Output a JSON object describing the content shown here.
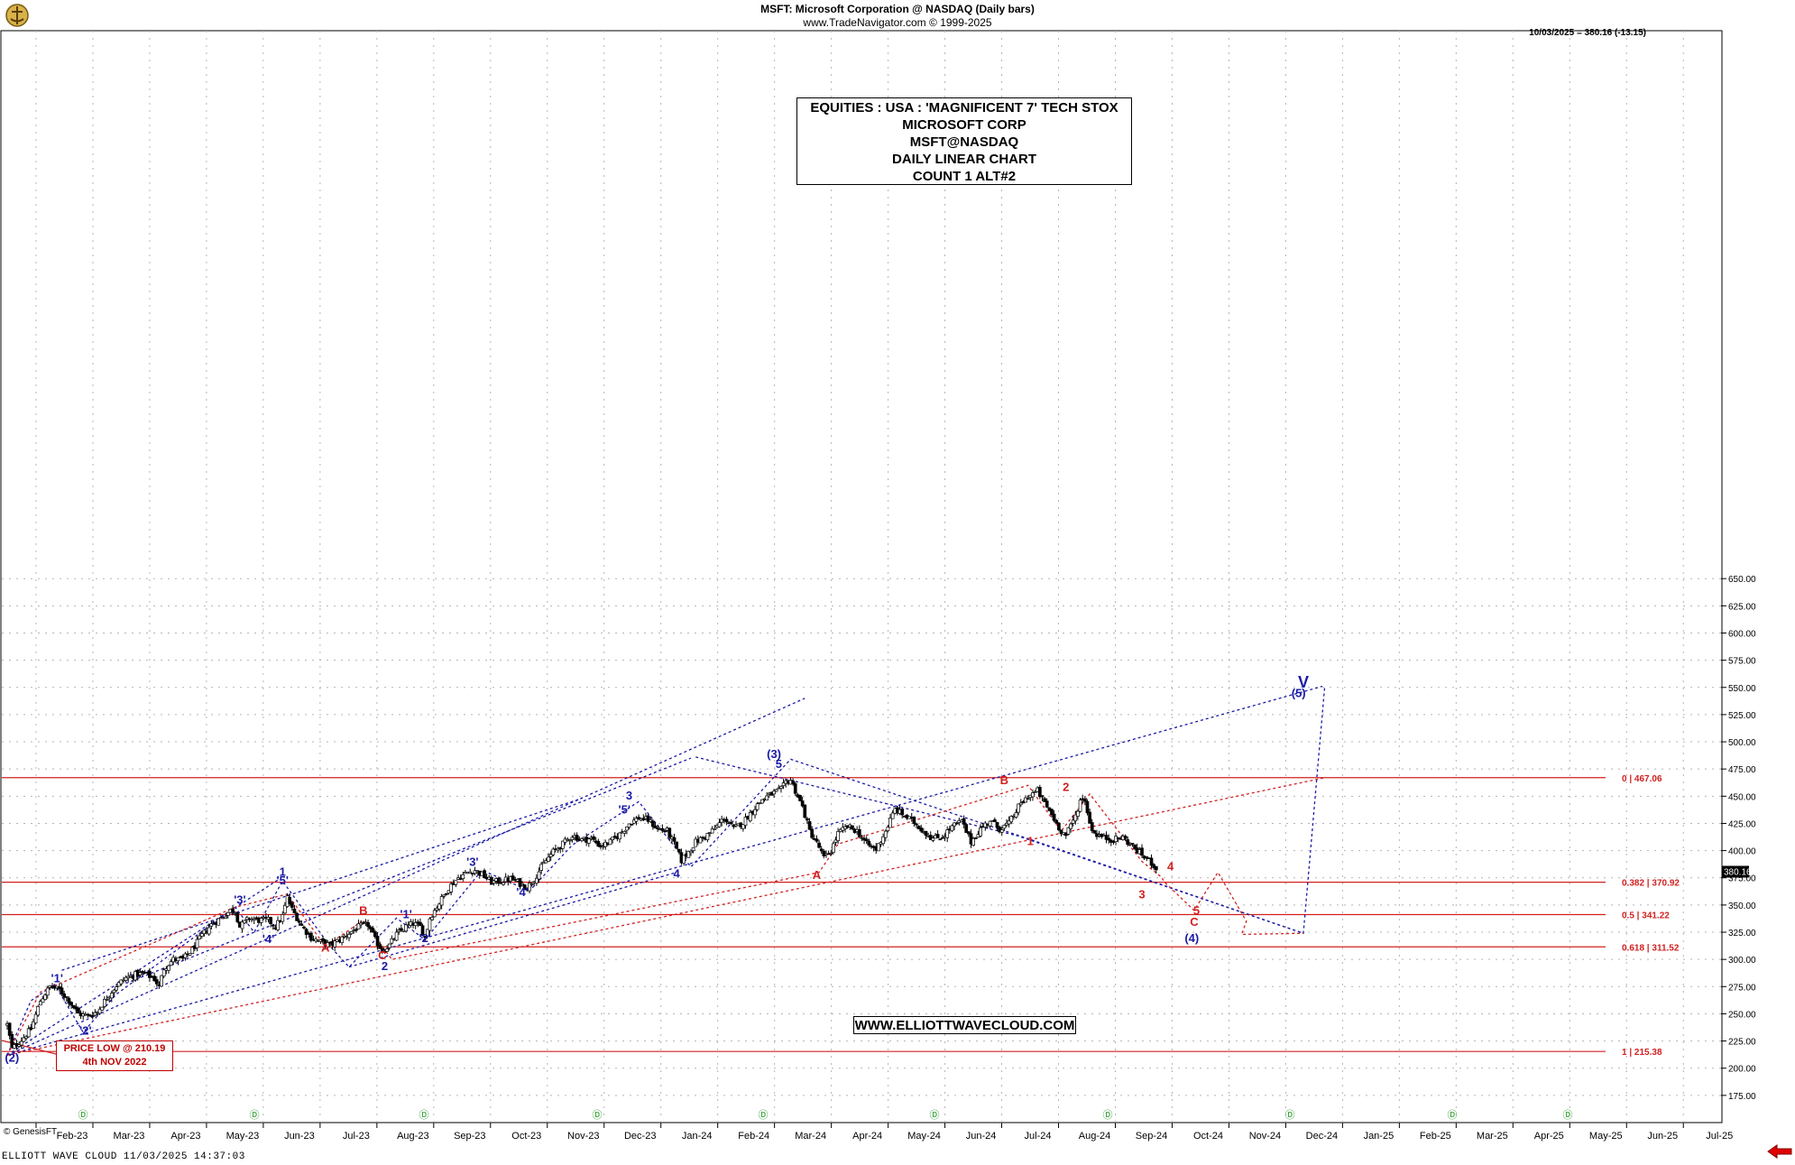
{
  "header": {
    "title": "MSFT:  Microsoft Corporation @ NASDAQ  (Daily bars)",
    "copyright": "www.TradeNavigator.com © 1999-2025",
    "last_quote": "10/03/2025 = 380.16 (-13.15)"
  },
  "title_box": [
    "EQUITIES : USA : 'MAGNIFICENT 7' TECH STOX",
    "MICROSOFT CORP",
    "MSFT@NASDAQ",
    "DAILY LINEAR CHART",
    "COUNT 1 ALT#2"
  ],
  "url_box": "WWW.ELLIOTTWAVECLOUD.COM",
  "low_box": [
    "PRICE LOW @ 210.19",
    "4th NOV 2022"
  ],
  "credit": "© GenesisFT",
  "footer": "ELLIOTT WAVE CLOUD   11/03/2025 14:37:03",
  "colors": {
    "price": "#000000",
    "blue": "#1a1aa6",
    "red": "#d22020",
    "grid": "#b4b4b4",
    "current": "#000000"
  },
  "chart_data": {
    "type": "candlestick",
    "ylim": [
      150,
      660
    ],
    "yticks": [
      "175.00",
      "200.00",
      "225.00",
      "250.00",
      "275.00",
      "300.00",
      "325.00",
      "350.00",
      "375.00",
      "400.00",
      "425.00",
      "450.00",
      "475.00",
      "500.00",
      "525.00",
      "550.00",
      "575.00",
      "600.00",
      "625.00",
      "650.00"
    ],
    "xticks": [
      "Feb-23",
      "Mar-23",
      "Apr-23",
      "May-23",
      "Jun-23",
      "Jul-23",
      "Aug-23",
      "Sep-23",
      "Oct-23",
      "Nov-23",
      "Dec-23",
      "Jan-24",
      "Feb-24",
      "Mar-24",
      "Apr-24",
      "May-24",
      "Jun-24",
      "Jul-24",
      "Aug-24",
      "Sep-24",
      "Oct-24",
      "Nov-24",
      "Dec-24",
      "Jan-25",
      "Feb-25",
      "Mar-25",
      "Apr-25",
      "May-25",
      "Jun-25",
      "Jul-25"
    ],
    "current_price": {
      "label": "380.16",
      "value": 380.16
    },
    "price_path": [
      [
        0,
        240
      ],
      [
        2,
        218
      ],
      [
        6,
        226
      ],
      [
        10,
        236
      ],
      [
        14,
        262
      ],
      [
        18,
        275
      ],
      [
        22,
        272
      ],
      [
        26,
        262
      ],
      [
        30,
        250
      ],
      [
        34,
        248
      ],
      [
        38,
        252
      ],
      [
        42,
        265
      ],
      [
        46,
        276
      ],
      [
        50,
        283
      ],
      [
        54,
        286
      ],
      [
        58,
        287
      ],
      [
        62,
        282
      ],
      [
        64,
        275
      ],
      [
        66,
        292
      ],
      [
        70,
        300
      ],
      [
        74,
        300
      ],
      [
        78,
        309
      ],
      [
        82,
        322
      ],
      [
        86,
        332
      ],
      [
        90,
        338
      ],
      [
        94,
        345
      ],
      [
        96,
        345
      ],
      [
        98,
        330
      ],
      [
        102,
        338
      ],
      [
        106,
        336
      ],
      [
        110,
        336
      ],
      [
        113,
        330
      ],
      [
        116,
        340
      ],
      [
        118,
        357
      ],
      [
        120,
        346
      ],
      [
        124,
        331
      ],
      [
        128,
        320
      ],
      [
        132,
        316
      ],
      [
        136,
        313
      ],
      [
        140,
        318
      ],
      [
        144,
        324
      ],
      [
        148,
        330
      ],
      [
        152,
        332
      ],
      [
        155,
        318
      ],
      [
        158,
        308
      ],
      [
        161,
        313
      ],
      [
        164,
        323
      ],
      [
        168,
        330
      ],
      [
        171,
        333
      ],
      [
        174,
        330
      ],
      [
        176,
        320
      ],
      [
        178,
        338
      ],
      [
        182,
        352
      ],
      [
        186,
        366
      ],
      [
        190,
        375
      ],
      [
        194,
        380
      ],
      [
        197,
        382
      ],
      [
        200,
        378
      ],
      [
        204,
        371
      ],
      [
        208,
        372
      ],
      [
        212,
        374
      ],
      [
        216,
        370
      ],
      [
        219,
        366
      ],
      [
        222,
        374
      ],
      [
        226,
        388
      ],
      [
        230,
        399
      ],
      [
        234,
        406
      ],
      [
        238,
        414
      ],
      [
        242,
        410
      ],
      [
        246,
        411
      ],
      [
        250,
        404
      ],
      [
        254,
        408
      ],
      [
        258,
        415
      ],
      [
        262,
        425
      ],
      [
        266,
        430
      ],
      [
        270,
        428
      ],
      [
        274,
        420
      ],
      [
        278,
        418
      ],
      [
        281,
        406
      ],
      [
        284,
        391
      ],
      [
        287,
        399
      ],
      [
        290,
        408
      ],
      [
        294,
        413
      ],
      [
        298,
        420
      ],
      [
        302,
        430
      ],
      [
        306,
        420
      ],
      [
        310,
        426
      ],
      [
        314,
        437
      ],
      [
        318,
        447
      ],
      [
        322,
        452
      ],
      [
        326,
        456
      ],
      [
        328,
        463
      ],
      [
        330,
        465
      ],
      [
        332,
        455
      ],
      [
        335,
        440
      ],
      [
        338,
        418
      ],
      [
        342,
        403
      ],
      [
        344,
        393
      ],
      [
        347,
        400
      ],
      [
        350,
        416
      ],
      [
        354,
        422
      ],
      [
        358,
        418
      ],
      [
        362,
        406
      ],
      [
        366,
        401
      ],
      [
        370,
        418
      ],
      [
        374,
        438
      ],
      [
        378,
        432
      ],
      [
        382,
        426
      ],
      [
        386,
        418
      ],
      [
        390,
        411
      ],
      [
        394,
        413
      ],
      [
        398,
        422
      ],
      [
        402,
        427
      ],
      [
        406,
        408
      ],
      [
        410,
        420
      ],
      [
        414,
        428
      ],
      [
        418,
        420
      ],
      [
        422,
        425
      ],
      [
        426,
        440
      ],
      [
        430,
        450
      ],
      [
        434,
        455
      ],
      [
        436,
        447
      ],
      [
        440,
        433
      ],
      [
        442,
        425
      ],
      [
        444,
        418
      ],
      [
        446,
        414
      ],
      [
        450,
        432
      ],
      [
        452,
        446
      ],
      [
        454,
        447
      ],
      [
        456,
        425
      ],
      [
        458,
        416
      ],
      [
        462,
        412
      ],
      [
        466,
        410
      ],
      [
        470,
        412
      ],
      [
        474,
        404
      ],
      [
        478,
        396
      ],
      [
        482,
        389
      ],
      [
        484,
        384
      ],
      [
        485,
        380.16
      ]
    ],
    "horizontal_levels": [
      {
        "value": 467.06,
        "label": "0 | 467.06"
      },
      {
        "value": 370.92,
        "label": "0.382 | 370.92"
      },
      {
        "value": 341.22,
        "label": "0.5 | 341.22"
      },
      {
        "value": 311.52,
        "label": "0.618 | 311.52"
      },
      {
        "value": 215.38,
        "label": "1 | 215.38"
      }
    ],
    "blue_channels": [
      {
        "path": [
          [
            0,
            212
          ],
          [
            336,
            540
          ]
        ]
      },
      {
        "path": [
          [
            0,
            212
          ],
          [
            554,
            551
          ]
        ]
      },
      {
        "path": [
          [
            0,
            212
          ],
          [
            114,
            373
          ]
        ]
      },
      {
        "path": [
          [
            23,
            290
          ],
          [
            242,
            448
          ]
        ]
      },
      {
        "path": [
          [
            144,
            293
          ],
          [
            282,
            380
          ]
        ]
      },
      {
        "path": [
          [
            290,
            486
          ],
          [
            425,
            414
          ]
        ]
      },
      {
        "path": [
          [
            425,
            414
          ],
          [
            546,
            324
          ]
        ]
      },
      {
        "path": [
          [
            50,
            278
          ],
          [
            288,
            485
          ]
        ]
      }
    ],
    "blue_zigzag": [
      [
        0,
        212
      ],
      [
        10,
        262
      ],
      [
        20,
        277
      ],
      [
        32,
        233
      ],
      [
        46,
        268
      ],
      [
        96,
        348
      ],
      [
        104,
        325
      ],
      [
        116,
        372
      ],
      [
        136,
        312
      ],
      [
        144,
        293
      ],
      [
        164,
        338
      ],
      [
        176,
        318
      ],
      [
        200,
        382
      ],
      [
        220,
        363
      ],
      [
        238,
        405
      ],
      [
        266,
        445
      ],
      [
        288,
        385
      ],
      [
        330,
        484
      ],
      [
        430,
        411
      ],
      [
        546,
        324
      ],
      [
        555,
        551
      ]
    ],
    "red_zigzag": [
      [
        0,
        212
      ],
      [
        14,
        270
      ],
      [
        96,
        348
      ],
      [
        118,
        360
      ],
      [
        134,
        312
      ],
      [
        150,
        336
      ],
      [
        162,
        300
      ],
      [
        342,
        380
      ],
      [
        350,
        406
      ],
      [
        430,
        460
      ],
      [
        444,
        418
      ],
      [
        456,
        452
      ],
      [
        478,
        390
      ],
      [
        486,
        376
      ],
      [
        488,
        370
      ],
      [
        500,
        345
      ],
      [
        510,
        380
      ],
      [
        522,
        335
      ],
      [
        520,
        323
      ],
      [
        546,
        324
      ]
    ],
    "red_trend": [
      [
        0,
        212
      ],
      [
        555,
        467
      ]
    ],
    "annotations": [
      {
        "text": "'1'",
        "color": "blue",
        "x": 21,
        "y": 279
      },
      {
        "text": "'2'",
        "color": "blue",
        "x": 33,
        "y": 231
      },
      {
        "text": "'3'",
        "color": "blue",
        "x": 98,
        "y": 351
      },
      {
        "text": "'4'",
        "color": "blue",
        "x": 110,
        "y": 315
      },
      {
        "text": "'5'",
        "color": "blue",
        "x": 116,
        "y": 369
      },
      {
        "text": "1",
        "color": "blue",
        "x": 116,
        "y": 377
      },
      {
        "text": "A",
        "color": "red",
        "x": 134,
        "y": 307
      },
      {
        "text": "B",
        "color": "red",
        "x": 150,
        "y": 341
      },
      {
        "text": "C",
        "color": "red",
        "x": 158,
        "y": 300
      },
      {
        "text": "2",
        "color": "blue",
        "x": 159,
        "y": 290
      },
      {
        "text": "'1'",
        "color": "blue",
        "x": 168,
        "y": 338
      },
      {
        "text": "'2'",
        "color": "blue",
        "x": 176,
        "y": 316
      },
      {
        "text": "'3'",
        "color": "blue",
        "x": 196,
        "y": 386
      },
      {
        "text": "'4'",
        "color": "blue",
        "x": 217,
        "y": 358
      },
      {
        "text": "'5'",
        "color": "blue",
        "x": 260,
        "y": 434
      },
      {
        "text": "3",
        "color": "blue",
        "x": 262,
        "y": 447
      },
      {
        "text": "4",
        "color": "blue",
        "x": 282,
        "y": 375
      },
      {
        "text": "5",
        "color": "blue",
        "x": 325,
        "y": 476
      },
      {
        "text": "(3)",
        "color": "blue",
        "x": 323,
        "y": 485
      },
      {
        "text": "A",
        "color": "red",
        "x": 341,
        "y": 374
      },
      {
        "text": "B",
        "color": "red",
        "x": 420,
        "y": 461
      },
      {
        "text": "1",
        "color": "red",
        "x": 431,
        "y": 405
      },
      {
        "text": "2",
        "color": "red",
        "x": 446,
        "y": 455
      },
      {
        "text": "3",
        "color": "red",
        "x": 478,
        "y": 356
      },
      {
        "text": "4",
        "color": "red",
        "x": 490,
        "y": 382
      },
      {
        "text": "5",
        "color": "red",
        "x": 501,
        "y": 341
      },
      {
        "text": "C",
        "color": "red",
        "x": 500,
        "y": 331
      },
      {
        "text": "(4)",
        "color": "blue",
        "x": 499,
        "y": 316
      },
      {
        "text": "(5)",
        "color": "blue",
        "x": 544,
        "y": 541
      },
      {
        "text": "V",
        "color": "blue",
        "x": 546,
        "y": 550
      },
      {
        "text": "(2)",
        "color": "blue",
        "x": 2,
        "y": 206
      }
    ]
  }
}
